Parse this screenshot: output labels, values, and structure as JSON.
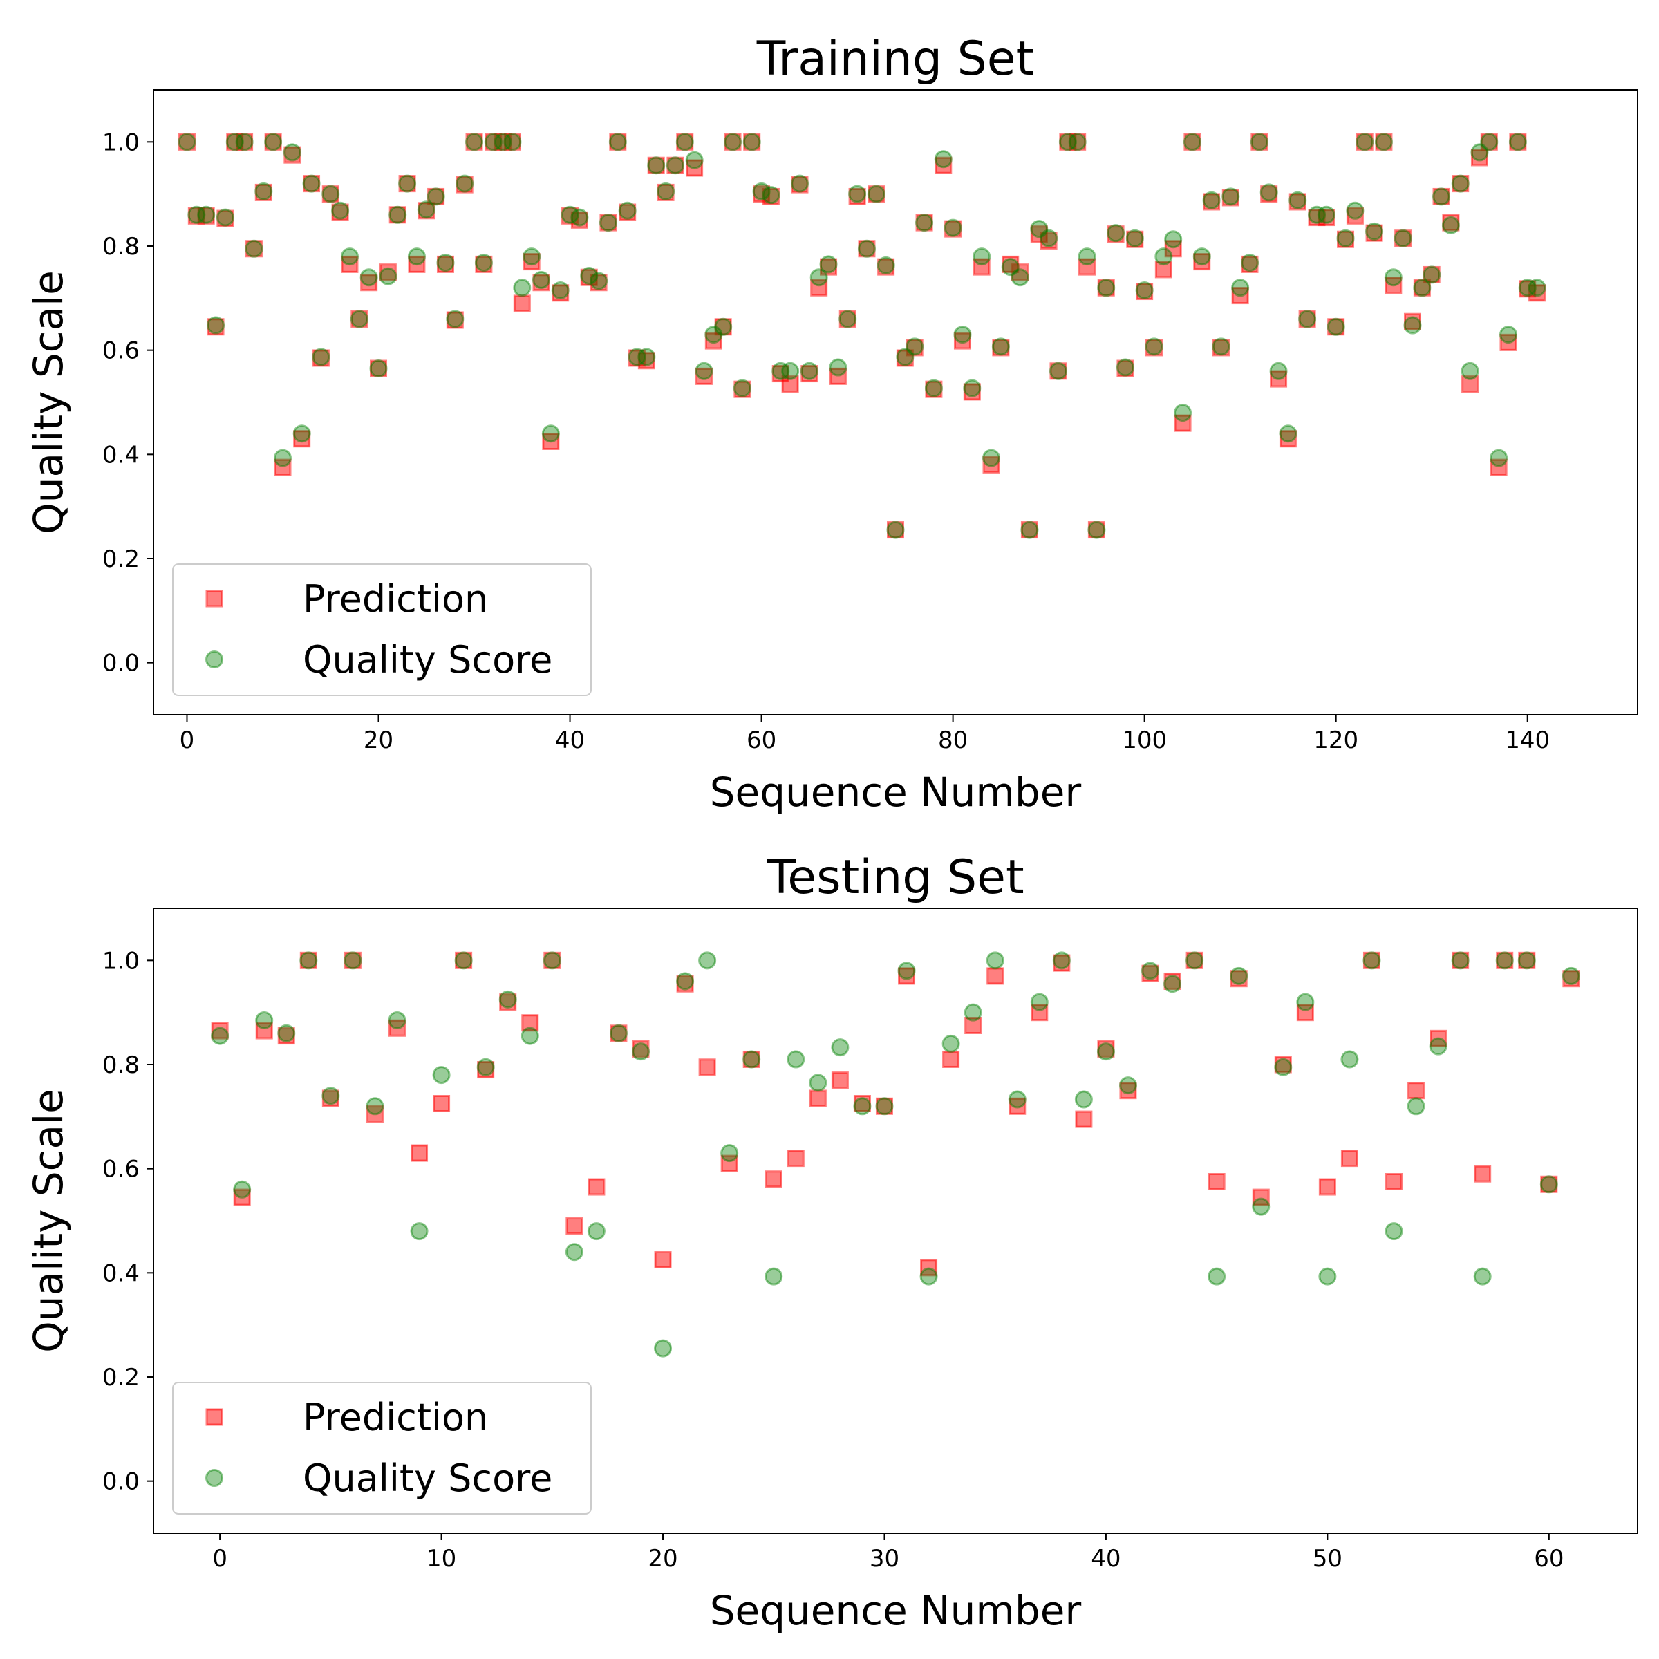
{
  "chart_data": [
    {
      "type": "scatter",
      "title": "Training Set",
      "xlabel": "Sequence Number",
      "ylabel": "Quality Scale",
      "xlim": [
        -3.5,
        151.5
      ],
      "ylim": [
        -0.1,
        1.1
      ],
      "xticks": [
        0,
        20,
        40,
        60,
        80,
        100,
        120,
        140
      ],
      "yticks": [
        0.0,
        0.2,
        0.4,
        0.6,
        0.8,
        1.0
      ],
      "xtick_labels": [
        "0",
        "20",
        "40",
        "60",
        "80",
        "100",
        "120",
        "140"
      ],
      "ytick_labels": [
        "0.0",
        "0.2",
        "0.4",
        "0.6",
        "0.8",
        "1.0"
      ],
      "legend_position": "lower-left",
      "legend": [
        "Prediction",
        "Quality Score"
      ],
      "series": [
        {
          "name": "Prediction",
          "marker": "square",
          "color": "#ff0000",
          "values": [
            1.0,
            0.858,
            0.858,
            0.645,
            0.853,
            1.0,
            1.0,
            0.795,
            0.903,
            1.0,
            0.375,
            0.975,
            0.43,
            0.92,
            0.585,
            0.9,
            0.865,
            0.765,
            0.66,
            0.73,
            0.565,
            0.75,
            0.86,
            0.92,
            0.765,
            0.868,
            0.895,
            0.765,
            0.658,
            0.918,
            1.0,
            0.765,
            1.0,
            1.0,
            1.0,
            0.69,
            0.77,
            0.73,
            0.425,
            0.71,
            0.858,
            0.85,
            0.74,
            0.73,
            0.845,
            1.0,
            0.865,
            0.585,
            0.58,
            0.955,
            0.903,
            0.955,
            1.0,
            0.95,
            0.55,
            0.618,
            0.645,
            1.0,
            0.525,
            1.0,
            0.9,
            0.895,
            0.555,
            0.535,
            0.918,
            0.555,
            0.72,
            0.76,
            0.55,
            0.66,
            0.895,
            0.795,
            0.9,
            0.76,
            0.255,
            0.585,
            0.605,
            0.845,
            0.525,
            0.955,
            0.833,
            0.618,
            0.52,
            0.76,
            0.38,
            0.605,
            0.765,
            0.75,
            0.255,
            0.823,
            0.81,
            0.56,
            1.0,
            1.0,
            0.76,
            0.255,
            0.72,
            0.823,
            0.565,
            0.813,
            0.713,
            0.605,
            0.755,
            0.795,
            0.46,
            1.0,
            0.77,
            0.885,
            0.605,
            0.893,
            0.705,
            0.765,
            1.0,
            0.9,
            0.545,
            0.43,
            0.885,
            0.66,
            0.855,
            0.855,
            0.645,
            0.813,
            0.858,
            1.0,
            0.825,
            1.0,
            0.725,
            0.815,
            0.655,
            0.72,
            0.745,
            0.895,
            0.845,
            0.92,
            0.535,
            0.97,
            1.0,
            0.375,
            0.615,
            1.0,
            0.718,
            0.71
          ]
        },
        {
          "name": "Quality Score",
          "marker": "circle",
          "color": "#008000",
          "values": [
            1.0,
            0.86,
            0.86,
            0.648,
            0.855,
            1.0,
            1.0,
            0.795,
            0.905,
            1.0,
            0.393,
            0.98,
            0.44,
            0.92,
            0.587,
            0.9,
            0.868,
            0.78,
            0.66,
            0.74,
            0.565,
            0.742,
            0.86,
            0.92,
            0.78,
            0.87,
            0.895,
            0.768,
            0.66,
            0.92,
            1.0,
            0.768,
            1.0,
            1.0,
            1.0,
            0.72,
            0.78,
            0.735,
            0.44,
            0.715,
            0.86,
            0.855,
            0.743,
            0.733,
            0.845,
            1.0,
            0.868,
            0.587,
            0.587,
            0.955,
            0.905,
            0.955,
            1.0,
            0.965,
            0.56,
            0.63,
            0.645,
            1.0,
            0.527,
            1.0,
            0.905,
            0.898,
            0.56,
            0.56,
            0.92,
            0.56,
            0.74,
            0.765,
            0.567,
            0.66,
            0.9,
            0.795,
            0.9,
            0.763,
            0.255,
            0.587,
            0.607,
            0.845,
            0.527,
            0.967,
            0.835,
            0.63,
            0.527,
            0.78,
            0.393,
            0.607,
            0.76,
            0.74,
            0.255,
            0.833,
            0.815,
            0.56,
            1.0,
            1.0,
            0.78,
            0.255,
            0.72,
            0.825,
            0.567,
            0.815,
            0.715,
            0.607,
            0.78,
            0.813,
            0.48,
            1.0,
            0.78,
            0.888,
            0.607,
            0.895,
            0.72,
            0.768,
            1.0,
            0.903,
            0.56,
            0.44,
            0.888,
            0.66,
            0.86,
            0.86,
            0.645,
            0.815,
            0.868,
            1.0,
            0.828,
            1.0,
            0.74,
            0.815,
            0.648,
            0.72,
            0.745,
            0.895,
            0.84,
            0.92,
            0.56,
            0.98,
            1.0,
            0.393,
            0.63,
            1.0,
            0.72,
            0.72
          ]
        }
      ]
    },
    {
      "type": "scatter",
      "title": "Testing Set",
      "xlabel": "Sequence Number",
      "ylabel": "Quality Scale",
      "xlim": [
        -3.0,
        64.0
      ],
      "ylim": [
        -0.1,
        1.1
      ],
      "xticks": [
        0,
        10,
        20,
        30,
        40,
        50,
        60
      ],
      "yticks": [
        0.0,
        0.2,
        0.4,
        0.6,
        0.8,
        1.0
      ],
      "xtick_labels": [
        "0",
        "10",
        "20",
        "30",
        "40",
        "50",
        "60"
      ],
      "ytick_labels": [
        "0.0",
        "0.2",
        "0.4",
        "0.6",
        "0.8",
        "1.0"
      ],
      "legend_position": "lower-left",
      "legend": [
        "Prediction",
        "Quality Score"
      ],
      "series": [
        {
          "name": "Prediction",
          "marker": "square",
          "color": "#ff0000",
          "values": [
            0.865,
            0.545,
            0.865,
            0.855,
            1.0,
            0.735,
            1.0,
            0.705,
            0.87,
            0.63,
            0.725,
            1.0,
            0.79,
            0.92,
            0.88,
            1.0,
            0.49,
            0.565,
            0.86,
            0.83,
            0.425,
            0.955,
            0.795,
            0.61,
            0.81,
            0.58,
            0.62,
            0.735,
            0.77,
            0.725,
            0.72,
            0.97,
            0.41,
            0.81,
            0.875,
            0.97,
            0.72,
            0.9,
            0.995,
            0.695,
            0.83,
            0.75,
            0.975,
            0.96,
            1.0,
            0.575,
            0.965,
            0.545,
            0.8,
            0.9,
            0.565,
            0.62,
            1.0,
            0.575,
            0.75,
            0.85,
            1.0,
            0.59,
            1.0,
            1.0,
            0.57,
            0.965
          ]
        },
        {
          "name": "Quality Score",
          "marker": "circle",
          "color": "#008000",
          "values": [
            0.855,
            0.56,
            0.885,
            0.86,
            1.0,
            0.74,
            1.0,
            0.72,
            0.885,
            0.48,
            0.78,
            1.0,
            0.795,
            0.925,
            0.855,
            1.0,
            0.44,
            0.48,
            0.86,
            0.825,
            0.255,
            0.96,
            1.0,
            0.63,
            0.81,
            0.393,
            0.81,
            0.765,
            0.833,
            0.72,
            0.72,
            0.98,
            0.393,
            0.84,
            0.9,
            1.0,
            0.733,
            0.92,
            1.0,
            0.733,
            0.825,
            0.76,
            0.98,
            0.955,
            1.0,
            0.393,
            0.97,
            0.527,
            0.795,
            0.92,
            0.393,
            0.81,
            1.0,
            0.48,
            0.72,
            0.835,
            1.0,
            0.393,
            1.0,
            1.0,
            0.57,
            0.97
          ]
        }
      ]
    }
  ]
}
